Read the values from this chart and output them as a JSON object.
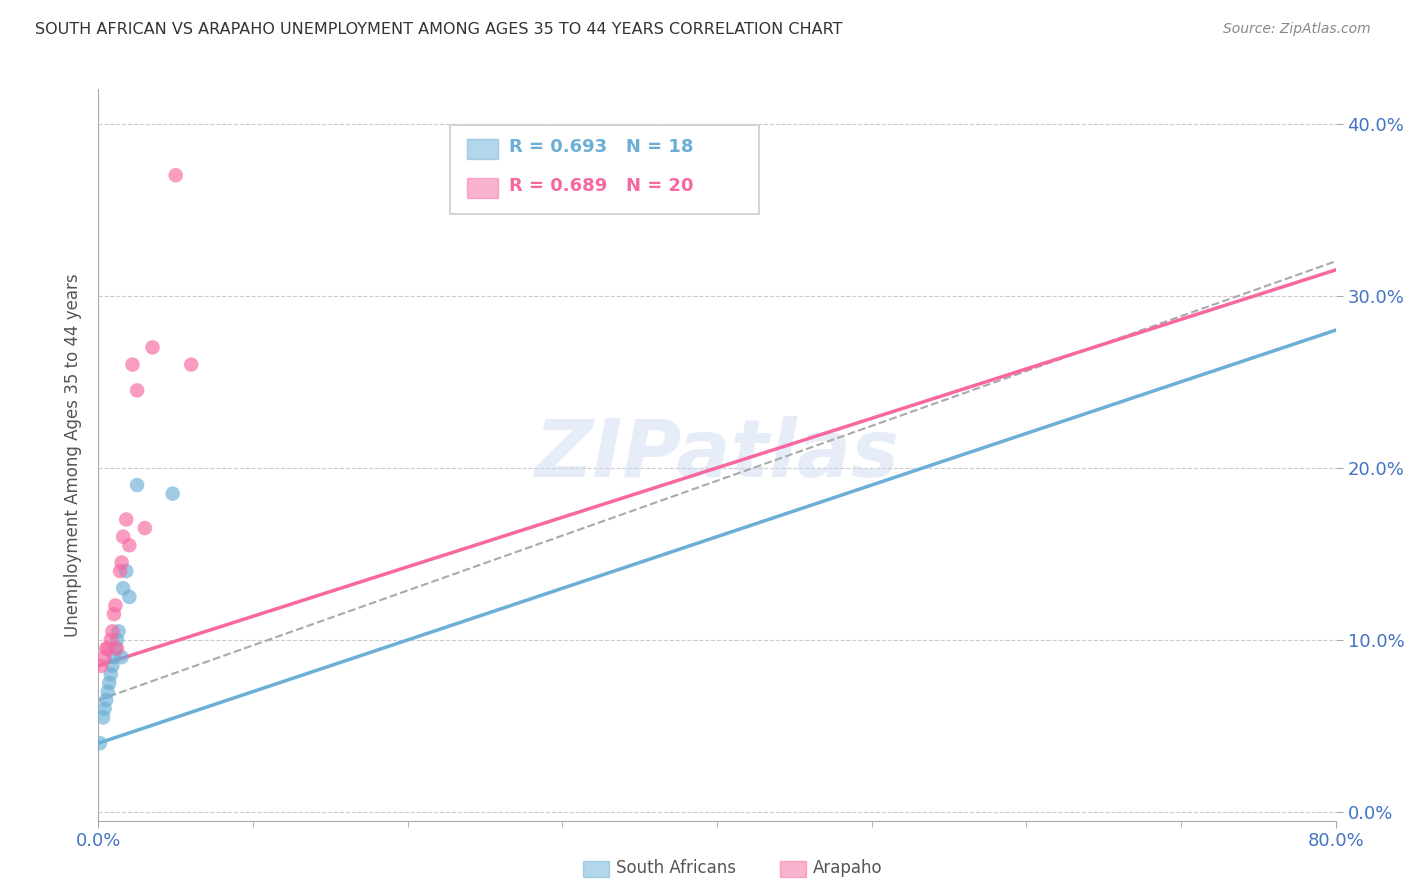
{
  "title": "SOUTH AFRICAN VS ARAPAHO UNEMPLOYMENT AMONG AGES 35 TO 44 YEARS CORRELATION CHART",
  "source": "Source: ZipAtlas.com",
  "ylabel": "Unemployment Among Ages 35 to 44 years",
  "xlim": [
    0.0,
    0.8
  ],
  "ylim": [
    -0.005,
    0.42
  ],
  "legend_entries": [
    {
      "label": "R = 0.693   N = 18",
      "color": "#6baed6"
    },
    {
      "label": "R = 0.689   N = 20",
      "color": "#f768a1"
    }
  ],
  "legend_xlabel": [
    "South Africans",
    "Arapaho"
  ],
  "south_african_x": [
    0.001,
    0.003,
    0.004,
    0.005,
    0.006,
    0.007,
    0.008,
    0.009,
    0.01,
    0.011,
    0.012,
    0.013,
    0.015,
    0.016,
    0.018,
    0.02,
    0.025,
    0.048
  ],
  "south_african_y": [
    0.04,
    0.055,
    0.06,
    0.065,
    0.07,
    0.075,
    0.08,
    0.085,
    0.09,
    0.095,
    0.1,
    0.105,
    0.09,
    0.13,
    0.14,
    0.125,
    0.19,
    0.185
  ],
  "arapaho_x": [
    0.002,
    0.004,
    0.005,
    0.006,
    0.008,
    0.009,
    0.01,
    0.011,
    0.012,
    0.014,
    0.015,
    0.016,
    0.018,
    0.02,
    0.022,
    0.025,
    0.03,
    0.035,
    0.05,
    0.06
  ],
  "arapaho_y": [
    0.085,
    0.09,
    0.095,
    0.095,
    0.1,
    0.105,
    0.115,
    0.12,
    0.095,
    0.14,
    0.145,
    0.16,
    0.17,
    0.155,
    0.26,
    0.245,
    0.165,
    0.27,
    0.37,
    0.26
  ],
  "sa_line_x": [
    0.0,
    0.8
  ],
  "sa_line_y": [
    0.04,
    0.28
  ],
  "arap_line_x": [
    0.0,
    0.8
  ],
  "arap_line_y": [
    0.085,
    0.315
  ],
  "dash_line_x": [
    0.0,
    0.8
  ],
  "dash_line_y": [
    0.065,
    0.32
  ],
  "watermark": "ZIPatlas",
  "bg_color": "#ffffff",
  "grid_color": "#cccccc",
  "sa_color": "#6baed6",
  "arap_color": "#f768a1",
  "title_color": "#333333",
  "tick_color": "#4472c4",
  "ytick_vals": [
    0.0,
    0.1,
    0.2,
    0.3,
    0.4
  ],
  "xtick_show": [
    0.0,
    0.8
  ]
}
